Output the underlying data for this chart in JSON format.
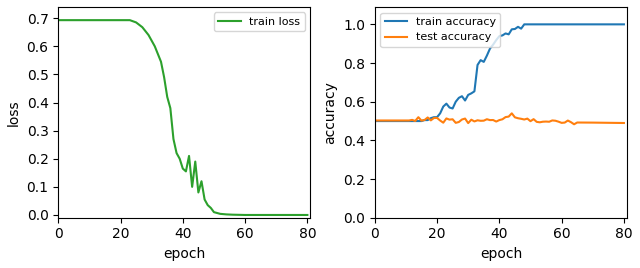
{
  "loss_color": "#2ca02c",
  "train_acc_color": "#1f77b4",
  "test_acc_color": "#ff7f0e",
  "loss_label": "train loss",
  "train_acc_label": "train accuracy",
  "test_acc_label": "test accuracy",
  "loss_xlabel": "epoch",
  "loss_ylabel": "loss",
  "acc_xlabel": "epoch",
  "acc_ylabel": "accuracy",
  "loss_xlim": [
    0,
    81
  ],
  "acc_xlim": [
    0,
    81
  ],
  "loss_ylim": [
    -0.01,
    0.74
  ],
  "acc_ylim": [
    0.0,
    1.09
  ],
  "loss_yticks": [
    0.0,
    0.1,
    0.2,
    0.3,
    0.4,
    0.5,
    0.6,
    0.7
  ],
  "acc_yticks": [
    0.0,
    0.2,
    0.4,
    0.6,
    0.8,
    1.0
  ],
  "xticks": [
    0,
    20,
    40,
    60,
    80
  ],
  "linewidth": 1.5,
  "figsize": [
    6.4,
    2.68
  ],
  "dpi": 100,
  "loss_ctrl_x": [
    0,
    23,
    25,
    27,
    29,
    31,
    33,
    34,
    35,
    36,
    37,
    38,
    39,
    40,
    41,
    42,
    43,
    44,
    45,
    46,
    47,
    48,
    49,
    50,
    52,
    54,
    56,
    60,
    80
  ],
  "loss_ctrl_y": [
    0.693,
    0.693,
    0.685,
    0.668,
    0.64,
    0.6,
    0.545,
    0.49,
    0.42,
    0.38,
    0.27,
    0.22,
    0.2,
    0.165,
    0.155,
    0.21,
    0.1,
    0.19,
    0.08,
    0.12,
    0.055,
    0.035,
    0.025,
    0.01,
    0.004,
    0.002,
    0.001,
    0.0,
    0.0
  ],
  "train_ctrl_x": [
    0,
    15,
    16,
    17,
    18,
    19,
    20,
    21,
    22,
    23,
    24,
    25,
    26,
    27,
    28,
    29,
    30,
    31,
    32,
    33,
    34,
    35,
    36,
    37,
    38,
    39,
    40,
    41,
    42,
    43,
    44,
    45,
    46,
    47,
    48,
    49,
    50,
    55,
    60,
    80
  ],
  "train_ctrl_y": [
    0.5,
    0.5,
    0.505,
    0.505,
    0.515,
    0.52,
    0.52,
    0.54,
    0.575,
    0.59,
    0.57,
    0.565,
    0.6,
    0.62,
    0.615,
    0.61,
    0.635,
    0.64,
    0.66,
    0.79,
    0.815,
    0.82,
    0.83,
    0.87,
    0.9,
    0.92,
    0.935,
    0.945,
    0.955,
    0.96,
    0.97,
    0.975,
    0.985,
    0.99,
    0.995,
    1.0,
    1.0,
    1.0,
    1.0,
    1.0
  ],
  "test_ctrl_x": [
    0,
    14,
    16,
    18,
    19,
    20,
    21,
    22,
    23,
    24,
    25,
    27,
    30,
    32,
    33,
    35,
    37,
    38,
    39,
    40,
    42,
    44,
    45,
    46,
    47,
    50,
    55,
    60,
    70,
    80
  ],
  "test_ctrl_y": [
    0.503,
    0.503,
    0.505,
    0.51,
    0.52,
    0.515,
    0.505,
    0.5,
    0.515,
    0.51,
    0.505,
    0.5,
    0.5,
    0.505,
    0.51,
    0.505,
    0.5,
    0.505,
    0.5,
    0.505,
    0.515,
    0.54,
    0.52,
    0.515,
    0.51,
    0.5,
    0.495,
    0.493,
    0.492,
    0.49
  ]
}
